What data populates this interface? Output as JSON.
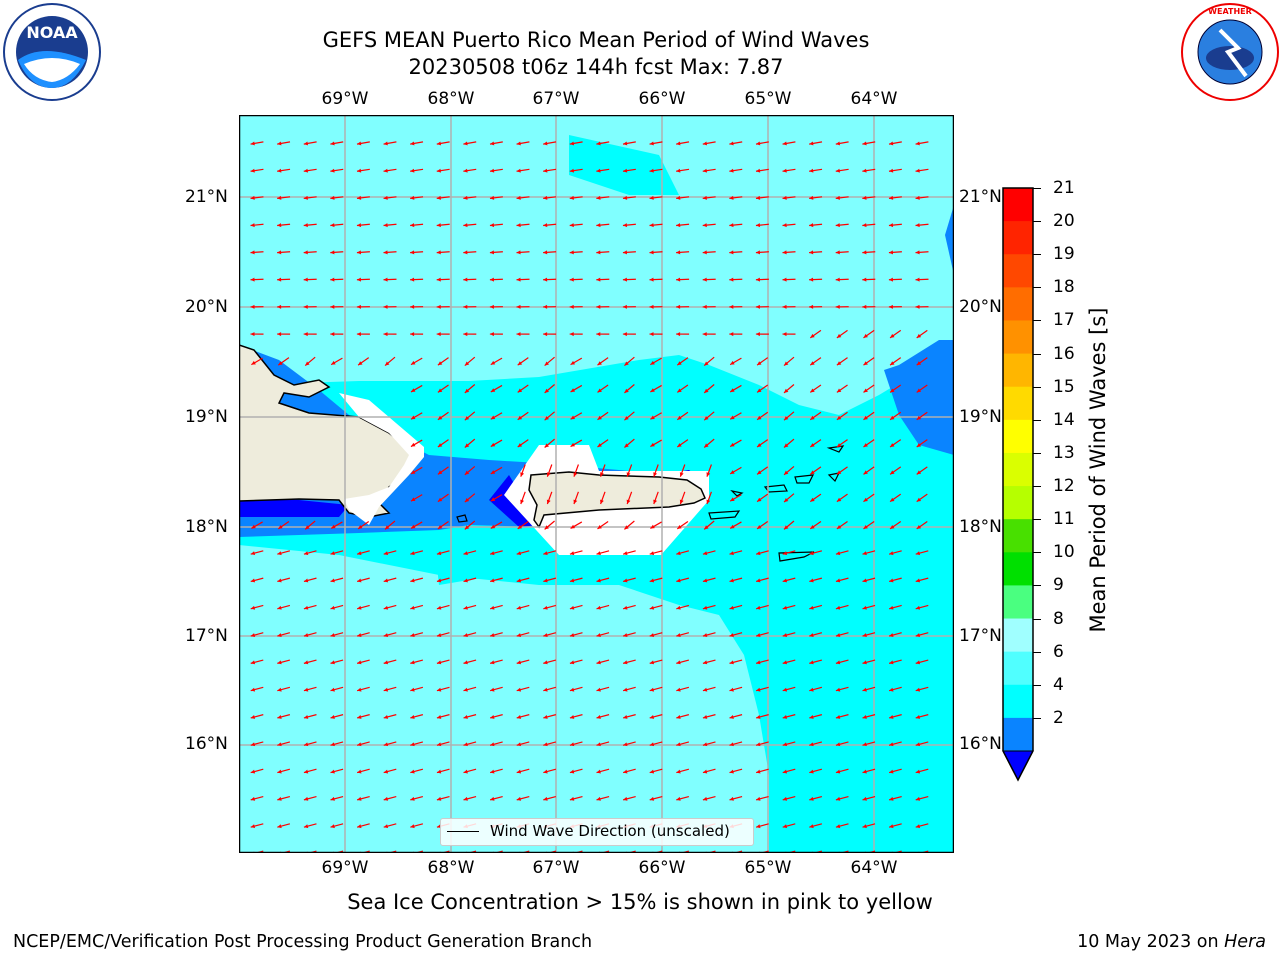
{
  "title": {
    "line1": "GEFS MEAN Puerto Rico Mean Period of Wind Waves",
    "line2": "20230508 t06z 144h fcst   Max: 7.87"
  },
  "logos": {
    "noaa": "NOAA",
    "noaa_ring_text": "NATIONAL OCEANIC AND ATMOSPHERIC ADMINISTRATION · U.S. DEPARTMENT OF COMMERCE",
    "nws_ring_text": "NATIONAL WEATHER SERVICE"
  },
  "map": {
    "lon_labels": [
      "69°W",
      "68°W",
      "67°W",
      "66°W",
      "65°W",
      "64°W"
    ],
    "lat_labels": [
      "21°N",
      "20°N",
      "19°N",
      "18°N",
      "17°N",
      "16°N"
    ],
    "legend_label": "Wind Wave Direction (unscaled)",
    "colors": {
      "background": "#00ffff",
      "light_cyan": "#80ffff",
      "blue": "#0a84ff",
      "dark_blue": "#0000ff",
      "land": "#eeecdc",
      "arrow": "#ff0000",
      "grid": "#b0b0b0"
    }
  },
  "colorbar": {
    "title": "Mean Period of Wind Waves [s]",
    "labels": [
      "21",
      "20",
      "19",
      "18",
      "17",
      "16",
      "15",
      "14",
      "13",
      "12",
      "11",
      "10",
      "9",
      "8",
      "6",
      "4",
      "2"
    ],
    "colors_top_to_bottom": [
      "#ff0000",
      "#ff2400",
      "#ff4800",
      "#ff6d00",
      "#ff9100",
      "#ffb600",
      "#ffda00",
      "#ffff00",
      "#daff00",
      "#b6ff00",
      "#48e000",
      "#00e000",
      "#4aff80",
      "#a0ffff",
      "#50ffff",
      "#00ffff",
      "#0a84ff"
    ],
    "extend_color": "#0000ff"
  },
  "caption": "Sea Ice Concentration > 15% is shown in pink to yellow",
  "footer": {
    "left": "NCEP/EMC/Verification Post Processing Product Generation Branch",
    "right_prefix": "10 May 2023 on ",
    "right_host": "Hera"
  }
}
